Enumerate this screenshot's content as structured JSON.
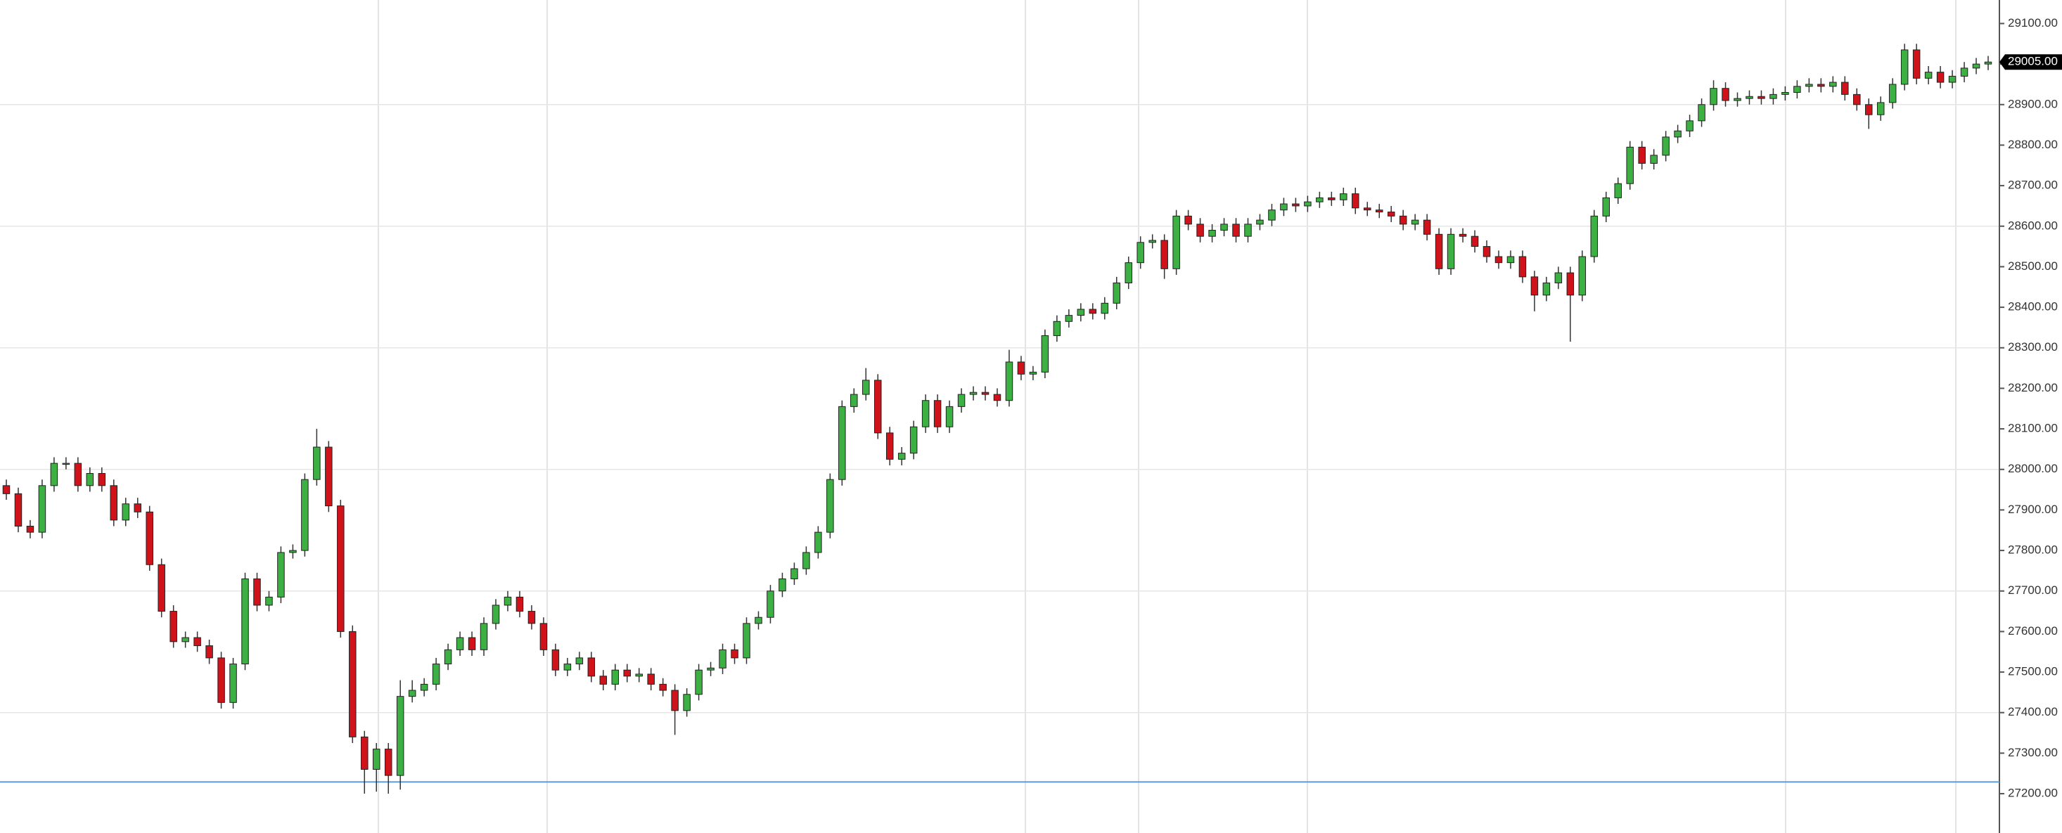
{
  "chart_data": {
    "type": "candlestick",
    "ylim": [
      27103,
      29158
    ],
    "yticks": [
      {
        "value": 27200,
        "label": "27200.00"
      },
      {
        "value": 27300,
        "label": "27300.00"
      },
      {
        "value": 27400,
        "label": "27400.00"
      },
      {
        "value": 27500,
        "label": "27500.00"
      },
      {
        "value": 27600,
        "label": "27600.00"
      },
      {
        "value": 27700,
        "label": "27700.00"
      },
      {
        "value": 27800,
        "label": "27800.00"
      },
      {
        "value": 27900,
        "label": "27900.00"
      },
      {
        "value": 28000,
        "label": "28000.00"
      },
      {
        "value": 28100,
        "label": "28100.00"
      },
      {
        "value": 28200,
        "label": "28200.00"
      },
      {
        "value": 28300,
        "label": "28300.00"
      },
      {
        "value": 28400,
        "label": "28400.00"
      },
      {
        "value": 28500,
        "label": "28500.00"
      },
      {
        "value": 28600,
        "label": "28600.00"
      },
      {
        "value": 28700,
        "label": "28700.00"
      },
      {
        "value": 28800,
        "label": "28800.00"
      },
      {
        "value": 28900,
        "label": "28900.00"
      },
      {
        "value": 29000,
        "label": "29000.00"
      },
      {
        "value": 29100,
        "label": "29100.00"
      }
    ],
    "ygrid": [
      27400,
      27700,
      28000,
      28300,
      28600,
      28900
    ],
    "up_color": "#3cb043",
    "down_color": "#d0121b",
    "horizontal_line": {
      "value": 27229,
      "color": "#5b9bd5"
    },
    "last_price": {
      "value": 29005,
      "label": "29005.00"
    },
    "open": [
      27960,
      27940,
      27860,
      27845,
      27960,
      28015,
      28015,
      27960,
      27990,
      27960,
      27875,
      27915,
      27895,
      27765,
      27650,
      27575,
      27585,
      27565,
      27535,
      27425,
      27520,
      27730,
      27665,
      27685,
      27795,
      27800,
      27975,
      28055,
      27910,
      27600,
      27340,
      27260,
      27310,
      27245,
      27440,
      27455,
      27470,
      27520,
      27555,
      27585,
      27555,
      27620,
      27665,
      27685,
      27650,
      27620,
      27555,
      27505,
      27520,
      27535,
      27490,
      27470,
      27505,
      27490,
      27495,
      27470,
      27455,
      27405,
      27445,
      27505,
      27510,
      27555,
      27535,
      27620,
      27635,
      27700,
      27730,
      27755,
      27795,
      27845,
      27975,
      28155,
      28185,
      28220,
      28090,
      28025,
      28040,
      28105,
      28170,
      28105,
      28155,
      28185,
      28190,
      28185,
      28170,
      28265,
      28235,
      28240,
      28330,
      28365,
      28380,
      28395,
      28385,
      28410,
      28460,
      28510,
      28560,
      28565,
      28495,
      28625,
      28605,
      28575,
      28590,
      28605,
      28575,
      28605,
      28615,
      28640,
      28655,
      28650,
      28660,
      28670,
      28665,
      28680,
      28645,
      28640,
      28635,
      28625,
      28605,
      28615,
      28580,
      28495,
      28580,
      28575,
      28550,
      28525,
      28510,
      28525,
      28475,
      28430,
      28460,
      28485,
      28430,
      28525,
      28625,
      28670,
      28705,
      28795,
      28755,
      28775,
      28820,
      28835,
      28860,
      28900,
      28940,
      28910,
      28915,
      28920,
      28915,
      28925,
      28930,
      28945,
      28950,
      28945,
      28955,
      28925,
      28900,
      28875,
      28905,
      28950,
      29035,
      28965,
      28980,
      28955,
      28970,
      28990,
      29000
    ],
    "high": [
      27975,
      27955,
      27875,
      27975,
      28030,
      28030,
      28030,
      28005,
      28005,
      27975,
      27930,
      27930,
      27910,
      27780,
      27665,
      27600,
      27600,
      27580,
      27550,
      27535,
      27745,
      27745,
      27700,
      27810,
      27815,
      27990,
      28100,
      28070,
      27925,
      27615,
      27355,
      27325,
      27325,
      27480,
      27480,
      27485,
      27535,
      27570,
      27600,
      27600,
      27635,
      27680,
      27700,
      27700,
      27665,
      27635,
      27570,
      27535,
      27550,
      27550,
      27505,
      27520,
      27520,
      27510,
      27510,
      27485,
      27470,
      27460,
      27520,
      27525,
      27570,
      27570,
      27635,
      27650,
      27715,
      27745,
      27770,
      27810,
      27860,
      27990,
      28170,
      28200,
      28250,
      28235,
      28105,
      28055,
      28120,
      28185,
      28185,
      28170,
      28200,
      28205,
      28205,
      28200,
      28295,
      28280,
      28255,
      28345,
      28380,
      28395,
      28410,
      28410,
      28425,
      28475,
      28525,
      28575,
      28580,
      28580,
      28640,
      28640,
      28620,
      28605,
      28620,
      28620,
      28620,
      28630,
      28655,
      28670,
      28670,
      28675,
      28685,
      28685,
      28695,
      28695,
      28660,
      28655,
      28650,
      28640,
      28630,
      28630,
      28595,
      28595,
      28595,
      28590,
      28565,
      28540,
      28540,
      28540,
      28490,
      28475,
      28500,
      28500,
      28540,
      28640,
      28685,
      28720,
      28810,
      28810,
      28790,
      28835,
      28850,
      28875,
      28915,
      28960,
      28955,
      28930,
      28935,
      28935,
      28940,
      28945,
      28960,
      28965,
      28965,
      28970,
      28970,
      28940,
      28915,
      28920,
      28965,
      29050,
      29050,
      28995,
      28995,
      28985,
      29005,
      29015,
      29020
    ],
    "low": [
      27925,
      27845,
      27830,
      27830,
      27945,
      28000,
      27945,
      27945,
      27945,
      27860,
      27860,
      27880,
      27750,
      27635,
      27560,
      27560,
      27550,
      27520,
      27410,
      27410,
      27505,
      27650,
      27650,
      27670,
      27780,
      27785,
      27960,
      27895,
      27585,
      27325,
      27200,
      27205,
      27200,
      27210,
      27425,
      27440,
      27455,
      27505,
      27540,
      27540,
      27540,
      27605,
      27650,
      27635,
      27605,
      27540,
      27490,
      27490,
      27505,
      27475,
      27455,
      27455,
      27475,
      27475,
      27455,
      27440,
      27345,
      27390,
      27430,
      27490,
      27495,
      27520,
      27520,
      27605,
      27620,
      27685,
      27715,
      27740,
      27780,
      27830,
      27960,
      28140,
      28170,
      28075,
      28010,
      28010,
      28025,
      28090,
      28090,
      28090,
      28140,
      28170,
      28170,
      28155,
      28155,
      28220,
      28220,
      28225,
      28315,
      28350,
      28365,
      28370,
      28370,
      28395,
      28445,
      28495,
      28545,
      28470,
      28480,
      28590,
      28560,
      28560,
      28575,
      28560,
      28560,
      28590,
      28600,
      28625,
      28635,
      28635,
      28645,
      28650,
      28650,
      28630,
      28625,
      28620,
      28610,
      28590,
      28590,
      28565,
      28480,
      28480,
      28560,
      28535,
      28510,
      28495,
      28495,
      28460,
      28390,
      28415,
      28445,
      28315,
      28415,
      28510,
      28610,
      28655,
      28690,
      28740,
      28740,
      28760,
      28805,
      28820,
      28845,
      28885,
      28895,
      28895,
      28900,
      28900,
      28900,
      28910,
      28915,
      28930,
      28930,
      28930,
      28910,
      28885,
      28840,
      28860,
      28890,
      28935,
      28950,
      28950,
      28940,
      28940,
      28955,
      28975,
      28985
    ],
    "close": [
      27940,
      27860,
      27845,
      27960,
      28015,
      28015,
      27960,
      27990,
      27960,
      27875,
      27915,
      27895,
      27765,
      27650,
      27575,
      27585,
      27565,
      27535,
      27425,
      27520,
      27730,
      27665,
      27685,
      27795,
      27800,
      27975,
      28055,
      27910,
      27600,
      27340,
      27260,
      27310,
      27245,
      27440,
      27455,
      27470,
      27520,
      27555,
      27585,
      27555,
      27620,
      27665,
      27685,
      27650,
      27620,
      27555,
      27505,
      27520,
      27535,
      27490,
      27470,
      27505,
      27490,
      27495,
      27470,
      27455,
      27405,
      27445,
      27505,
      27510,
      27555,
      27535,
      27620,
      27635,
      27700,
      27730,
      27755,
      27795,
      27845,
      27975,
      28155,
      28185,
      28220,
      28090,
      28025,
      28040,
      28105,
      28170,
      28105,
      28155,
      28185,
      28190,
      28185,
      28170,
      28265,
      28235,
      28240,
      28330,
      28365,
      28380,
      28395,
      28385,
      28410,
      28460,
      28510,
      28560,
      28565,
      28495,
      28625,
      28605,
      28575,
      28590,
      28605,
      28575,
      28605,
      28615,
      28640,
      28655,
      28650,
      28660,
      28670,
      28665,
      28680,
      28645,
      28640,
      28635,
      28625,
      28605,
      28615,
      28580,
      28495,
      28580,
      28575,
      28550,
      28525,
      28510,
      28525,
      28475,
      28430,
      28460,
      28485,
      28430,
      28525,
      28625,
      28670,
      28705,
      28795,
      28755,
      28775,
      28820,
      28835,
      28860,
      28900,
      28940,
      28910,
      28915,
      28920,
      28915,
      28925,
      28930,
      28945,
      28950,
      28945,
      28955,
      28925,
      28900,
      28875,
      28905,
      28950,
      29035,
      28965,
      28980,
      28955,
      28970,
      28990,
      29000,
      29005
    ]
  }
}
